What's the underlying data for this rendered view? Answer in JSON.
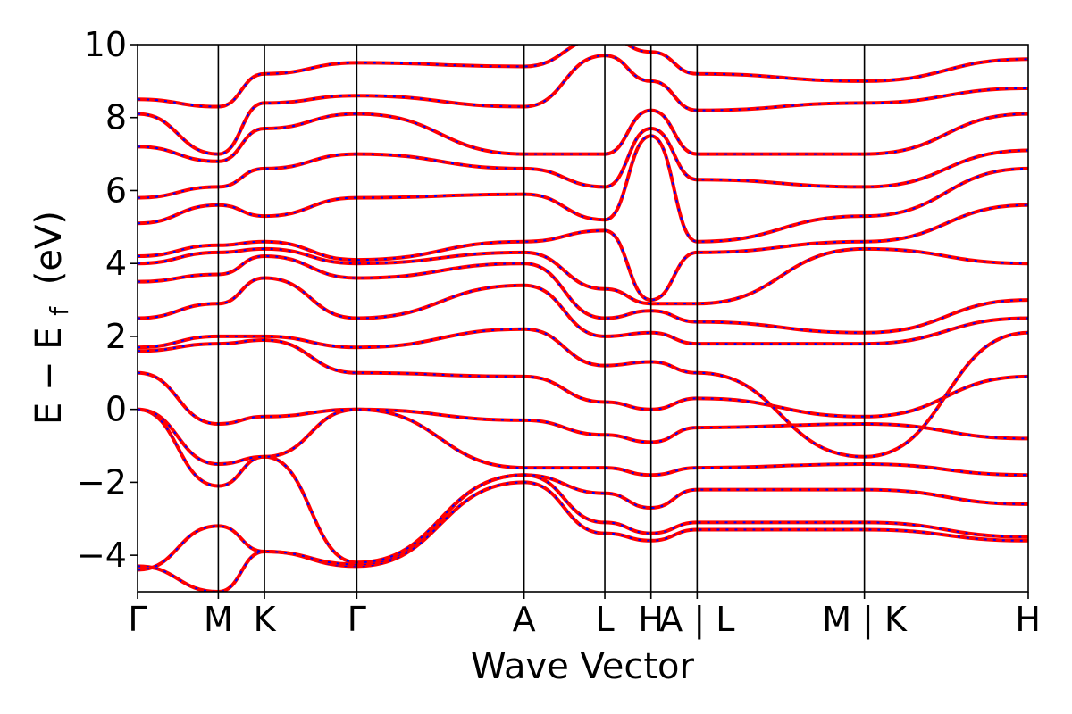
{
  "chart_data": {
    "type": "line",
    "xlabel": "Wave Vector",
    "ylabel": "E − E",
    "ylabel_sub": "f",
    "ylabel_unit": "(eV)",
    "ylim": [
      -5,
      10
    ],
    "yticks": [
      -4,
      -2,
      0,
      2,
      4,
      6,
      8,
      10
    ],
    "ytick_labels": [
      "−4",
      "−2",
      "0",
      "2",
      "4",
      "6",
      "8",
      "10"
    ],
    "kpath_positions": [
      0,
      0.7,
      1.1,
      1.9,
      3.35,
      4.05,
      4.45,
      4.85,
      6.3,
      7.72
    ],
    "kpath_labels": [
      "Γ",
      "M",
      "K",
      "Γ",
      "A",
      "L",
      "H",
      "A | L",
      "M | K",
      "H"
    ],
    "xlim": [
      0,
      7.72
    ],
    "grid": false,
    "line_colors": {
      "primary": "#ff0000",
      "overlay": "#0000ff"
    },
    "bands": [
      {
        "name": "",
        "values": [
          -4.3,
          -5.0,
          -3.9,
          -4.3,
          -2.0,
          -3.4,
          -3.6,
          -3.3,
          -3.3,
          -3.6
        ]
      },
      {
        "name": "",
        "values": [
          -4.4,
          -3.2,
          -3.9,
          -4.25,
          -1.8,
          -3.1,
          -3.4,
          -3.1,
          -3.1,
          -3.5
        ]
      },
      {
        "name": "",
        "values": [
          0.0,
          -2.1,
          -1.3,
          -4.2,
          -1.8,
          -2.3,
          -2.7,
          -2.2,
          -2.2,
          -2.6
        ]
      },
      {
        "name": "",
        "values": [
          0.0,
          -1.5,
          -1.3,
          0.0,
          -1.6,
          -1.6,
          -1.8,
          -1.6,
          -1.5,
          -1.8
        ]
      },
      {
        "name": "",
        "values": [
          1.0,
          -0.4,
          -0.2,
          0.0,
          -0.3,
          -0.7,
          -0.9,
          -0.5,
          -0.4,
          -0.8
        ]
      },
      {
        "name": "",
        "values": [
          1.6,
          1.8,
          1.9,
          1.0,
          0.9,
          0.2,
          0.0,
          0.3,
          -0.2,
          0.9
        ]
      },
      {
        "name": "",
        "values": [
          1.7,
          2.0,
          2.0,
          1.7,
          2.2,
          1.2,
          1.3,
          1.0,
          -1.3,
          2.1
        ]
      },
      {
        "name": "",
        "values": [
          2.5,
          2.9,
          3.6,
          2.5,
          3.4,
          2.0,
          2.1,
          1.8,
          1.8,
          2.5
        ]
      },
      {
        "name": "",
        "values": [
          3.5,
          3.7,
          4.2,
          3.6,
          4.0,
          2.5,
          2.7,
          2.4,
          2.1,
          3.0
        ]
      },
      {
        "name": "",
        "values": [
          4.0,
          4.3,
          4.4,
          4.0,
          4.3,
          3.3,
          2.9,
          2.9,
          4.4,
          4.0
        ]
      },
      {
        "name": "",
        "values": [
          4.2,
          4.5,
          4.6,
          4.1,
          4.6,
          4.9,
          3.0,
          4.3,
          4.6,
          5.6
        ]
      },
      {
        "name": "",
        "values": [
          5.1,
          5.6,
          5.3,
          5.8,
          5.9,
          5.2,
          7.5,
          4.6,
          5.3,
          6.6
        ]
      },
      {
        "name": "",
        "values": [
          5.8,
          6.1,
          6.6,
          7.0,
          6.6,
          6.1,
          7.7,
          6.3,
          6.1,
          7.1
        ]
      },
      {
        "name": "",
        "values": [
          7.2,
          6.8,
          7.7,
          8.1,
          7.0,
          7.0,
          8.2,
          7.0,
          7.0,
          8.1
        ]
      },
      {
        "name": "",
        "values": [
          8.1,
          7.0,
          8.4,
          8.6,
          8.3,
          9.7,
          9.0,
          8.2,
          8.4,
          8.8
        ]
      },
      {
        "name": "",
        "values": [
          8.5,
          8.3,
          9.2,
          9.5,
          9.4,
          10.2,
          9.8,
          9.2,
          9.0,
          9.6
        ]
      }
    ]
  }
}
